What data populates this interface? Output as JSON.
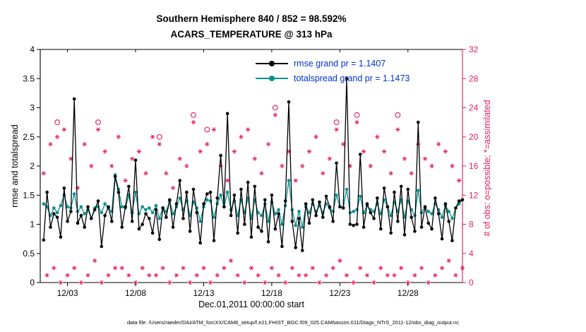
{
  "title": {
    "line1": "Southern Hemisphere 840 / 852 = 98.592%",
    "line2": "ACARS_TEMPERATURE @ 313 hPa"
  },
  "legend": {
    "rmse_label": "rmse grand pr = 1.1407",
    "totalspread_label": "totalspread grand pr = 1.1473"
  },
  "axes": {
    "left_label": "rmse and totalspread",
    "right_label": "# of obs: o=possible; *=assimilated",
    "x_label": "Dec.01,2011 00:00:00 start"
  },
  "footer": "data file: /Users/raeder/DAI/ATM_forcXX/CAM6_setup/f.e21.FHIST_BGC.f09_025.CAM6assim.011/Diags_NTrS_2011-12/obs_diag_output.nc",
  "colors": {
    "rmse": "#000000",
    "totalspread": "#0d9090",
    "obs": "#e21a64",
    "legend_text": "#0033cc"
  },
  "chart_data": {
    "type": "line",
    "title": "Southern Hemisphere 840 / 852 = 98.592%",
    "subtitle": "ACARS_TEMPERATURE @ 313 hPa",
    "xlabel": "Dec.01,2011 00:00:00 start",
    "ylabel_left": "rmse and totalspread",
    "ylabel_right": "# of obs: o=possible; *=assimilated",
    "grid": false,
    "legend_position": "top-center",
    "x_range": [
      0,
      31
    ],
    "ylim_left": [
      0,
      4
    ],
    "ylim_right": [
      0,
      32
    ],
    "yticks_left": [
      0,
      0.5,
      1,
      1.5,
      2,
      2.5,
      3,
      3.5,
      4
    ],
    "yticks_right": [
      0,
      4,
      8,
      12,
      16,
      20,
      24,
      28,
      32
    ],
    "xticks": [
      {
        "pos": 2,
        "label": "12/03"
      },
      {
        "pos": 7,
        "label": "12/08"
      },
      {
        "pos": 12,
        "label": "12/13"
      },
      {
        "pos": 17,
        "label": "12/18"
      },
      {
        "pos": 22,
        "label": "12/23"
      },
      {
        "pos": 27,
        "label": "12/28"
      }
    ],
    "x": {
      "start": 0.25,
      "step": 0.25,
      "count": 124,
      "units": "days since Dec.01,2011 00:00:00"
    },
    "series": [
      {
        "name": "rmse",
        "axis": "left",
        "style": "line-dot",
        "color": "#000000",
        "grand_mean": 1.1407,
        "values": [
          0.73,
          1.55,
          0.95,
          1.18,
          1.12,
          0.78,
          1.62,
          1.05,
          1.22,
          3.15,
          1.02,
          1.15,
          0.95,
          1.3,
          1.1,
          1.25,
          1.4,
          0.62,
          1.15,
          1.3,
          1.05,
          1.82,
          1.55,
          0.95,
          1.3,
          1.65,
          1.05,
          2.1,
          0.92,
          1.0,
          1.18,
          1.1,
          0.85,
          1.25,
          0.74,
          1.28,
          1.12,
          1.42,
          0.95,
          1.35,
          1.75,
          1.1,
          1.55,
          0.88,
          1.6,
          1.2,
          0.68,
          1.35,
          1.52,
          1.55,
          0.72,
          1.45,
          2.18,
          1.3,
          2.9,
          1.15,
          1.5,
          0.85,
          1.6,
          1.0,
          1.72,
          0.78,
          1.65,
          0.95,
          0.88,
          1.42,
          0.7,
          1.5,
          0.92,
          1.18,
          0.62,
          1.4,
          3.1,
          1.05,
          0.6,
          1.1,
          0.55,
          1.35,
          1.02,
          1.42,
          1.15,
          1.38,
          1.12,
          1.48,
          1.3,
          1.05,
          2.05,
          1.3,
          1.28,
          3.5,
          1.0,
          0.98,
          1.0,
          2.2,
          0.95,
          1.35,
          1.2,
          1.1,
          1.45,
          0.92,
          1.62,
          1.3,
          0.85,
          1.55,
          1.05,
          1.65,
          0.82,
          1.6,
          1.12,
          0.88,
          2.75,
          0.95,
          1.3,
          1.02,
          0.92,
          1.45,
          1.18,
          0.75,
          1.35,
          1.05,
          0.72,
          1.28,
          1.4,
          1.42
        ]
      },
      {
        "name": "totalspread",
        "axis": "left",
        "style": "line-dot",
        "color": "#0d9090",
        "grand_mean": 1.1473,
        "values": [
          1.35,
          1.3,
          1.15,
          1.28,
          1.2,
          1.32,
          1.5,
          1.3,
          1.28,
          1.52,
          1.22,
          1.3,
          1.18,
          1.25,
          1.1,
          1.28,
          1.3,
          1.2,
          1.35,
          1.28,
          1.22,
          1.85,
          1.6,
          1.3,
          1.28,
          1.5,
          1.2,
          1.55,
          1.18,
          1.3,
          1.25,
          1.28,
          1.2,
          1.32,
          1.1,
          1.28,
          1.22,
          1.4,
          1.18,
          1.3,
          1.45,
          1.25,
          1.4,
          1.15,
          1.38,
          1.28,
          1.05,
          1.3,
          1.42,
          1.4,
          1.12,
          1.35,
          1.5,
          1.3,
          1.55,
          1.25,
          1.4,
          1.15,
          1.42,
          1.2,
          1.45,
          1.1,
          1.42,
          1.2,
          1.15,
          1.35,
          1.05,
          1.38,
          1.18,
          1.25,
          1.0,
          1.32,
          1.75,
          1.25,
          0.98,
          1.22,
          0.95,
          1.3,
          1.2,
          1.35,
          1.22,
          1.32,
          1.2,
          1.35,
          1.28,
          1.22,
          1.5,
          1.3,
          1.28,
          1.6,
          1.2,
          1.22,
          1.25,
          1.48,
          1.2,
          1.32,
          1.25,
          1.22,
          1.35,
          1.18,
          1.42,
          1.3,
          1.15,
          1.38,
          1.22,
          1.42,
          1.12,
          1.4,
          1.25,
          1.15,
          1.58,
          1.2,
          1.3,
          1.22,
          1.18,
          1.35,
          1.25,
          1.12,
          1.32,
          1.22,
          1.1,
          1.28,
          1.35,
          1.42
        ]
      },
      {
        "name": "obs_assimilated",
        "axis": "right",
        "style": "asterisk",
        "color": "#e21a64",
        "total": 840,
        "values": [
          15,
          1,
          19,
          2,
          20,
          0,
          21,
          1,
          17,
          2,
          13,
          0,
          19,
          1,
          16,
          3,
          21,
          0,
          18,
          1,
          16,
          2,
          20,
          2,
          14,
          1,
          17,
          0,
          18,
          2,
          15,
          1,
          20,
          1,
          19,
          2,
          15,
          0,
          13,
          1,
          17,
          2,
          16,
          0,
          22,
          1,
          18,
          2,
          19,
          0,
          21,
          1,
          16,
          2,
          14,
          3,
          18,
          1,
          20,
          0,
          21,
          2,
          17,
          1,
          15,
          0,
          19,
          2,
          23,
          1,
          16,
          0,
          18,
          2,
          14,
          1,
          16,
          1,
          18,
          2,
          20,
          0,
          15,
          1,
          17,
          2,
          21,
          3,
          19,
          1,
          16,
          0,
          22,
          2,
          18,
          1,
          16,
          0,
          20,
          2,
          18,
          1,
          15,
          1,
          21,
          2,
          17,
          0,
          15,
          1,
          19,
          2,
          17,
          0,
          16,
          1,
          19,
          2,
          18,
          3,
          16,
          1,
          14,
          2
        ]
      },
      {
        "name": "obs_possible",
        "axis": "right",
        "style": "circle",
        "color": "#e21a64",
        "total": 852,
        "values": [
          15,
          1,
          19,
          2,
          22,
          0,
          21,
          1,
          17,
          2,
          13,
          0,
          19,
          1,
          16,
          3,
          22,
          0,
          18,
          1,
          16,
          2,
          20,
          2,
          14,
          1,
          17,
          0,
          18,
          2,
          15,
          1,
          20,
          1,
          20,
          2,
          15,
          0,
          13,
          1,
          17,
          2,
          16,
          0,
          23,
          1,
          18,
          2,
          21,
          0,
          21,
          1,
          16,
          2,
          14,
          3,
          18,
          1,
          20,
          0,
          21,
          2,
          17,
          1,
          15,
          0,
          19,
          2,
          24,
          1,
          16,
          0,
          18,
          2,
          14,
          1,
          16,
          1,
          18,
          2,
          20,
          0,
          15,
          1,
          17,
          2,
          22,
          3,
          19,
          1,
          16,
          0,
          23,
          2,
          18,
          1,
          16,
          0,
          20,
          2,
          18,
          1,
          15,
          1,
          23,
          2,
          17,
          0,
          15,
          1,
          19,
          2,
          17,
          0,
          16,
          1,
          19,
          2,
          18,
          3,
          16,
          1,
          14,
          2
        ]
      }
    ]
  }
}
